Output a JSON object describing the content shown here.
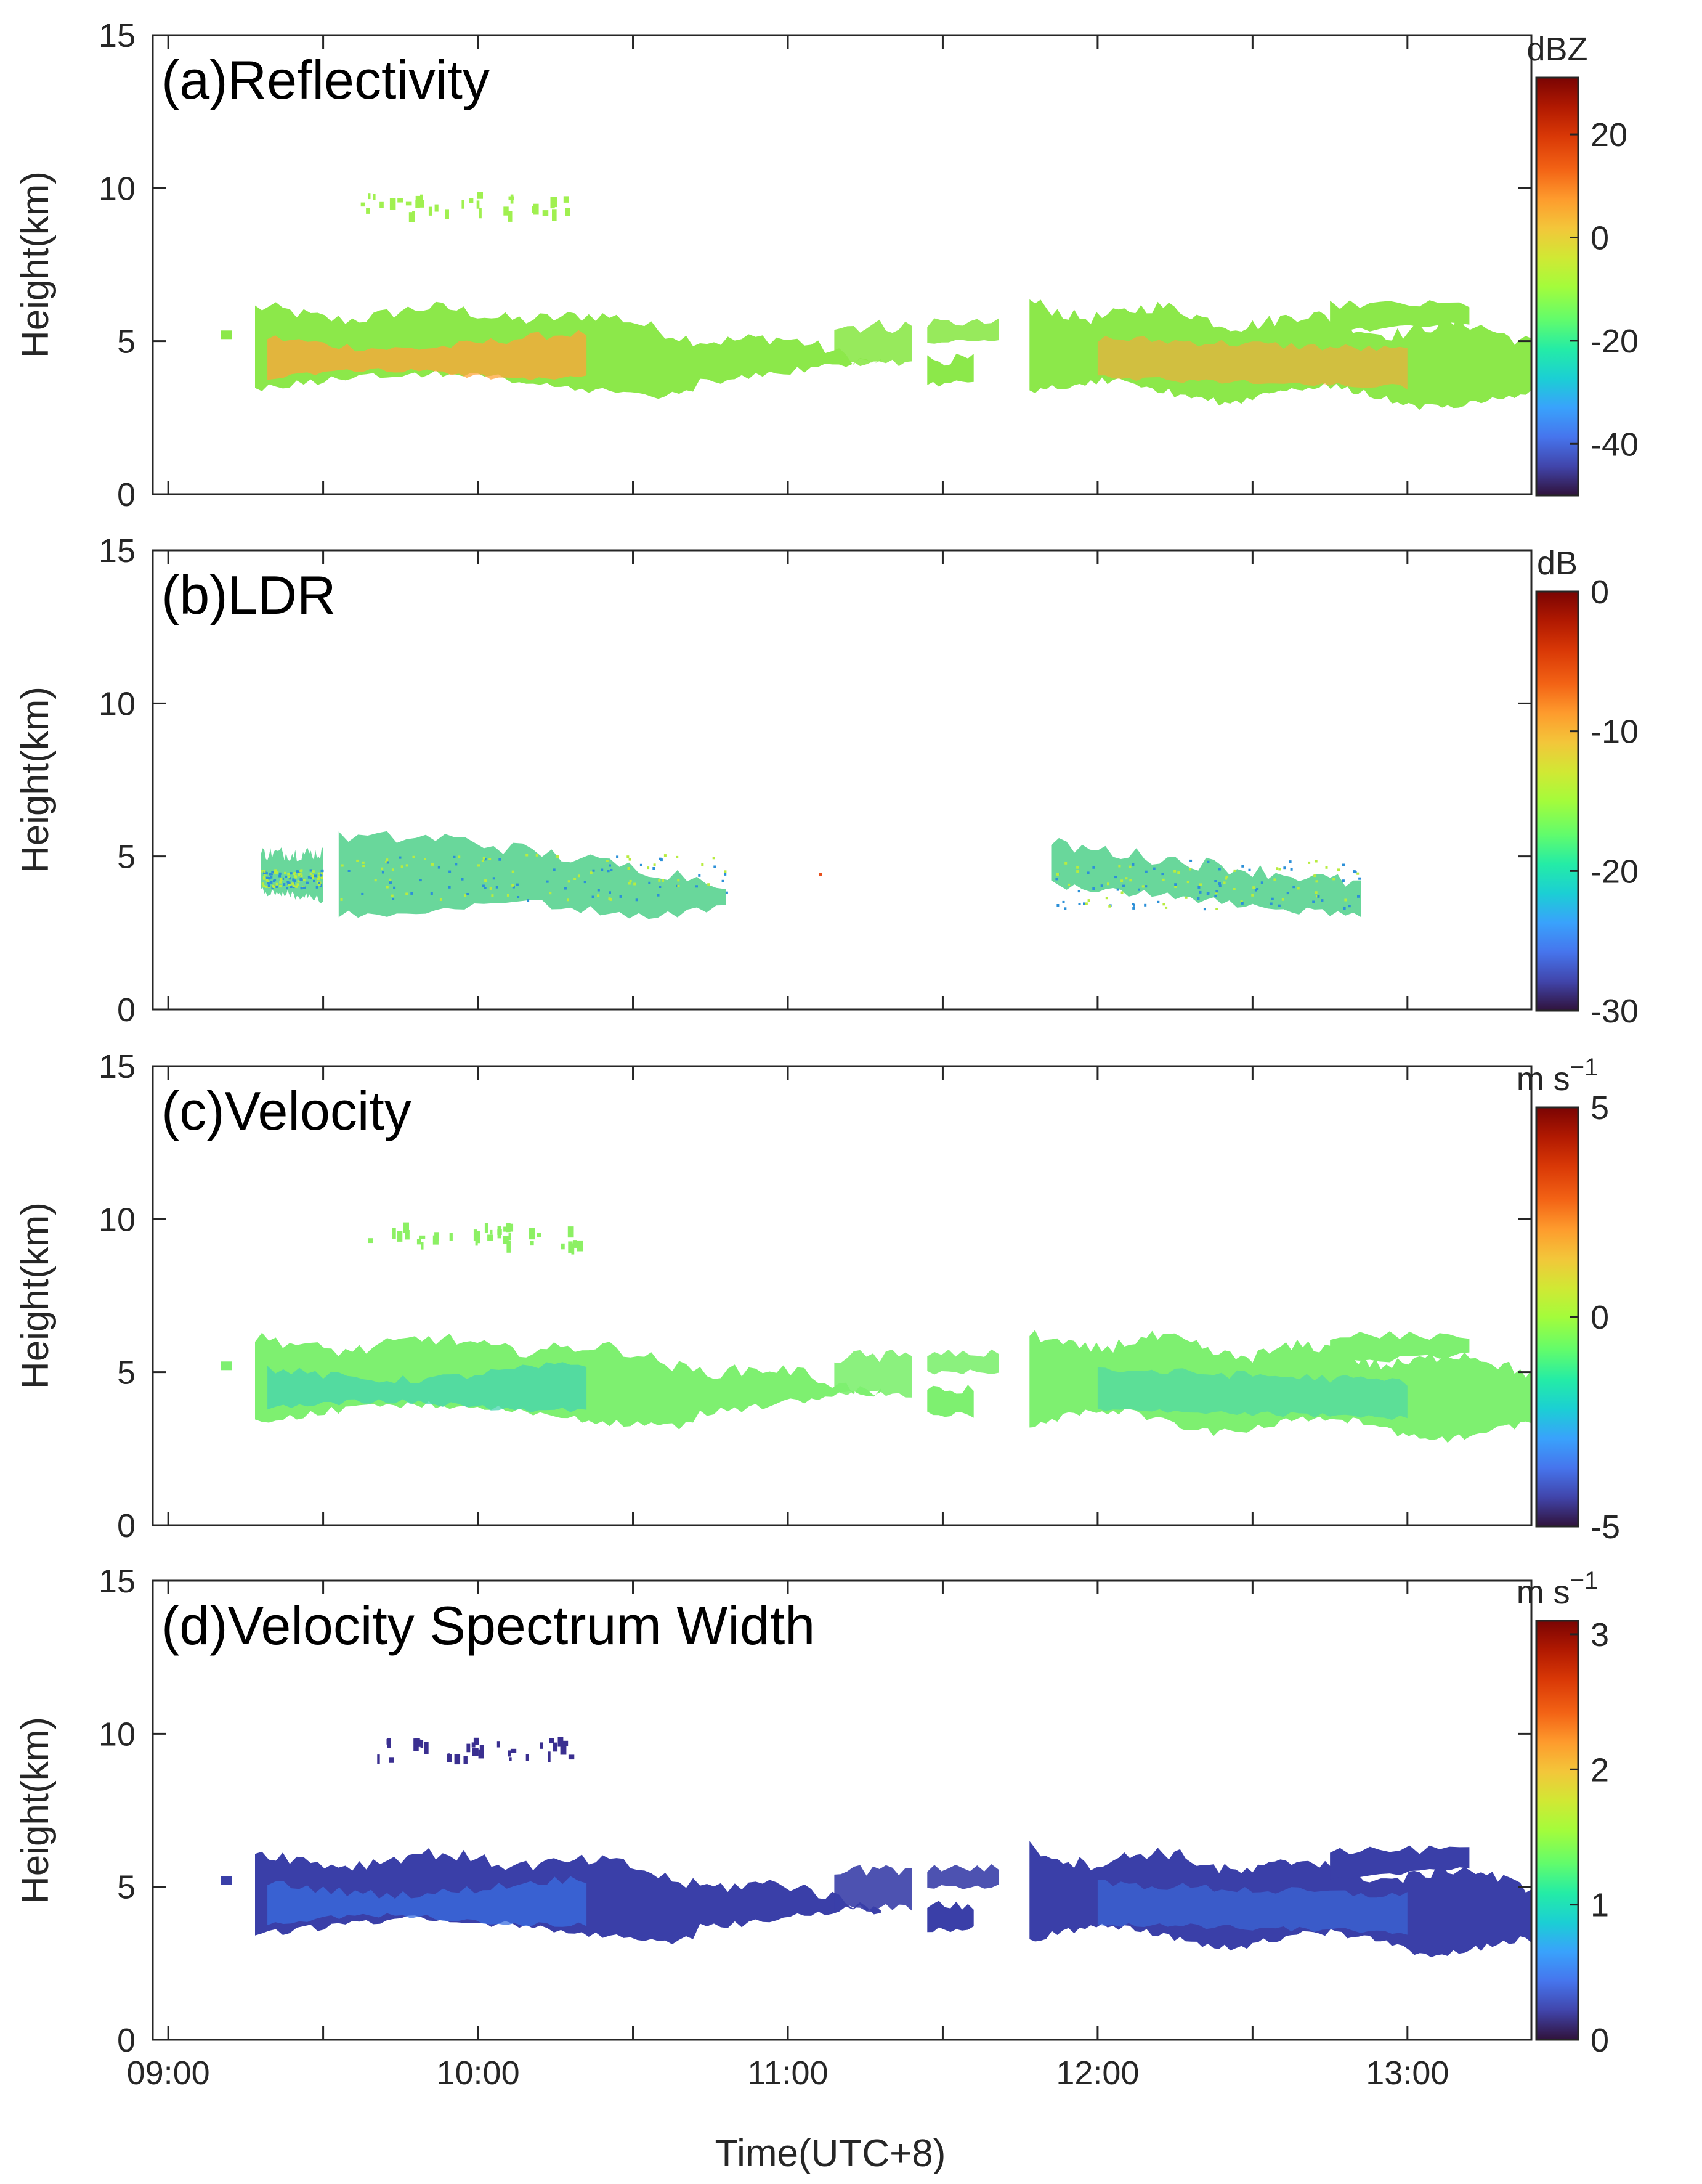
{
  "chart_data": {
    "type": "heatmap",
    "x_axis": {
      "label": "Time(UTC+8)",
      "range": [
        8.95,
        13.4
      ],
      "ticks": [
        {
          "value": 9.0,
          "label": "09:00"
        },
        {
          "value": 10.0,
          "label": "10:00"
        },
        {
          "value": 11.0,
          "label": "11:00"
        },
        {
          "value": 12.0,
          "label": "12:00"
        },
        {
          "value": 13.0,
          "label": "13:00"
        }
      ],
      "minor_ticks": [
        9.5,
        10.5,
        11.5,
        12.5
      ]
    },
    "y_axis": {
      "label": "Height(km)",
      "range": [
        0,
        15
      ],
      "ticks": [
        0,
        5,
        10,
        15
      ]
    },
    "colormap": "turbo",
    "panels": [
      {
        "id": "a",
        "title": "(a)Reflectivity",
        "unit": "dBZ",
        "unit_superscript": "",
        "clim": [
          -50,
          31
        ],
        "colorbar_ticks": [
          {
            "value": 20,
            "label": "20"
          },
          {
            "value": 0,
            "label": "0"
          },
          {
            "value": -20,
            "label": "-20"
          },
          {
            "value": -40,
            "label": "-40"
          }
        ],
        "main_color": "#8ce84a",
        "core_color": "#ffa43a",
        "scatter": [],
        "upper_fragments_color": "#a0f050"
      },
      {
        "id": "b",
        "title": "(b)LDR",
        "unit": "dB",
        "unit_superscript": "",
        "clim": [
          -30,
          0
        ],
        "colorbar_ticks": [
          {
            "value": 0,
            "label": "0"
          },
          {
            "value": -10,
            "label": "-10"
          },
          {
            "value": -20,
            "label": "-20"
          },
          {
            "value": -30,
            "label": "-30"
          }
        ],
        "main_color": "#4fd08a",
        "core_color": "#2fb0b0"
      },
      {
        "id": "c",
        "title": "(c)Velocity",
        "unit": "m s",
        "unit_superscript": "−1",
        "clim": [
          -5,
          5
        ],
        "colorbar_ticks": [
          {
            "value": 5,
            "label": "5"
          },
          {
            "value": 0,
            "label": "0"
          },
          {
            "value": -5,
            "label": "-5"
          }
        ],
        "main_color": "#7ef070",
        "core_color": "#46d4b0",
        "upper_fragments_color": "#8cf064"
      },
      {
        "id": "d",
        "title": "(d)Velocity Spectrum Width",
        "unit": "m s",
        "unit_superscript": "−1",
        "clim": [
          0,
          3.1
        ],
        "colorbar_ticks": [
          {
            "value": 3,
            "label": "3"
          },
          {
            "value": 2,
            "label": "2"
          },
          {
            "value": 1,
            "label": "1"
          },
          {
            "value": 0,
            "label": "0"
          }
        ],
        "main_color": "#3a3fa8",
        "core_color": "#3a6ee0",
        "upper_fragments_color": "#3a2f90"
      }
    ],
    "echo_regions": {
      "cloud_1": {
        "time_range": [
          9.28,
          11.3
        ],
        "base_km": [
          3.1,
          4.1
        ],
        "top_km": [
          5.2,
          6.4
        ]
      },
      "gap_fragments": {
        "time_range": [
          11.15,
          11.72
        ],
        "base_km": [
          3.4,
          4.0
        ],
        "top_km": [
          5.0,
          5.8
        ]
      },
      "cloud_2": {
        "time_range": [
          11.78,
          13.4
        ],
        "base_km": [
          2.8,
          4.0
        ],
        "top_km": [
          5.0,
          6.5
        ]
      },
      "upper_fragments": {
        "time_range": [
          9.62,
          10.32
        ],
        "height_km": [
          9.2,
          9.9
        ]
      },
      "ldr_regions": [
        {
          "time_range": [
            9.3,
            9.5
          ],
          "height_km": [
            3.7,
            5.1
          ]
        },
        {
          "time_range": [
            9.55,
            10.8
          ],
          "height_km": [
            3.3,
            5.6
          ]
        },
        {
          "time_range": [
            11.85,
            12.85
          ],
          "height_km": [
            3.0,
            5.4
          ]
        }
      ]
    }
  }
}
